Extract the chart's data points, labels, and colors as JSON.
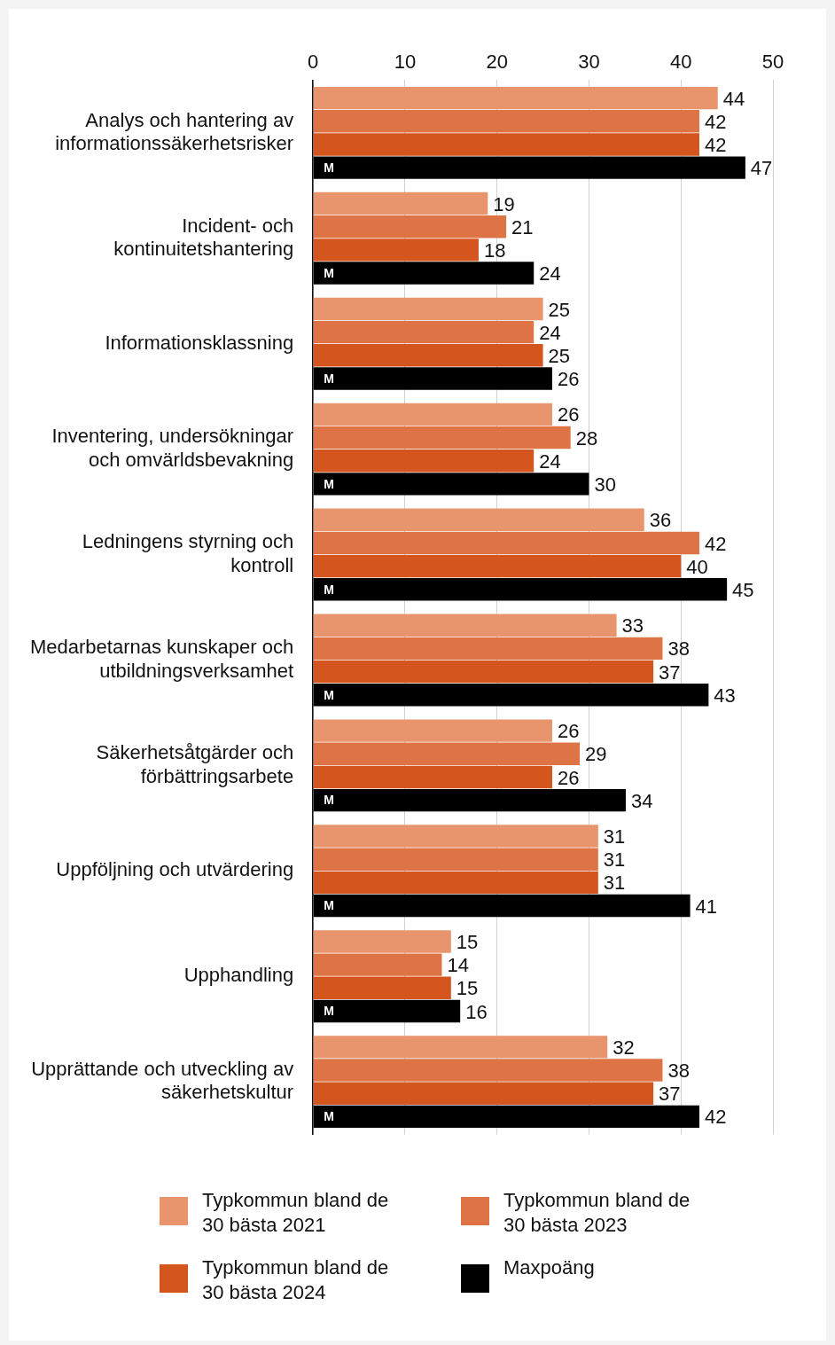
{
  "chart_data": {
    "type": "bar",
    "orientation": "horizontal",
    "categories": [
      "Analys och hantering av informationssäkerhetsrisker",
      "Incident- och kontinuitetshantering",
      "Informationsklassning",
      "Inventering, undersökningar och omvärldsbevakning",
      "Ledningens styrning och kontroll",
      "Medarbetarnas kunskaper och utbildningsverksamhet",
      "Säkerhetsåtgärder och förbättringsarbete",
      "Uppföljning och utvärdering",
      "Upphandling",
      "Upprättande och utveckling av säkerhetskultur"
    ],
    "series": [
      {
        "name": "Typkommun bland de 30 bästa 2021",
        "color": "#e8956e",
        "values": [
          44,
          19,
          25,
          26,
          36,
          33,
          26,
          31,
          15,
          32
        ]
      },
      {
        "name": "Typkommun bland de 30 bästa 2023",
        "color": "#de7446",
        "values": [
          42,
          21,
          24,
          28,
          42,
          38,
          29,
          31,
          14,
          38
        ]
      },
      {
        "name": "Typkommun bland de 30 bästa 2024",
        "color": "#d4561e",
        "values": [
          42,
          18,
          25,
          24,
          40,
          37,
          26,
          31,
          15,
          37
        ]
      },
      {
        "name": "Maxpoäng",
        "color": "#000000",
        "values": [
          47,
          24,
          26,
          30,
          45,
          43,
          34,
          41,
          16,
          42
        ]
      }
    ],
    "xlim": [
      0,
      50
    ],
    "xticks": [
      0,
      10,
      20,
      30,
      40,
      50
    ],
    "grid": "x",
    "legend": "bottom",
    "data_labels": true,
    "annotations": [
      {
        "text": "M",
        "y": "Analys och hantering av informationssäkerhetsrisker"
      },
      {
        "text": "M",
        "y": "Incident- och kontinuitetshantering"
      },
      {
        "text": "M",
        "y": "Informationsklassning"
      },
      {
        "text": "M",
        "y": "Inventering, undersökningar och omvärldsbevakning"
      },
      {
        "text": "M",
        "y": "Ledningens styrning och kontroll"
      },
      {
        "text": "M",
        "y": "Medarbetarnas kunskaper och utbildningsverksamhet"
      },
      {
        "text": "M",
        "y": "Säkerhetsåtgärder och förbättringsarbete"
      },
      {
        "text": "M",
        "y": "Uppföljning och utvärdering"
      },
      {
        "text": "M",
        "y": "Upphandling"
      },
      {
        "text": "M",
        "y": "Upprättande och utveckling av säkerhetskultur"
      }
    ]
  }
}
